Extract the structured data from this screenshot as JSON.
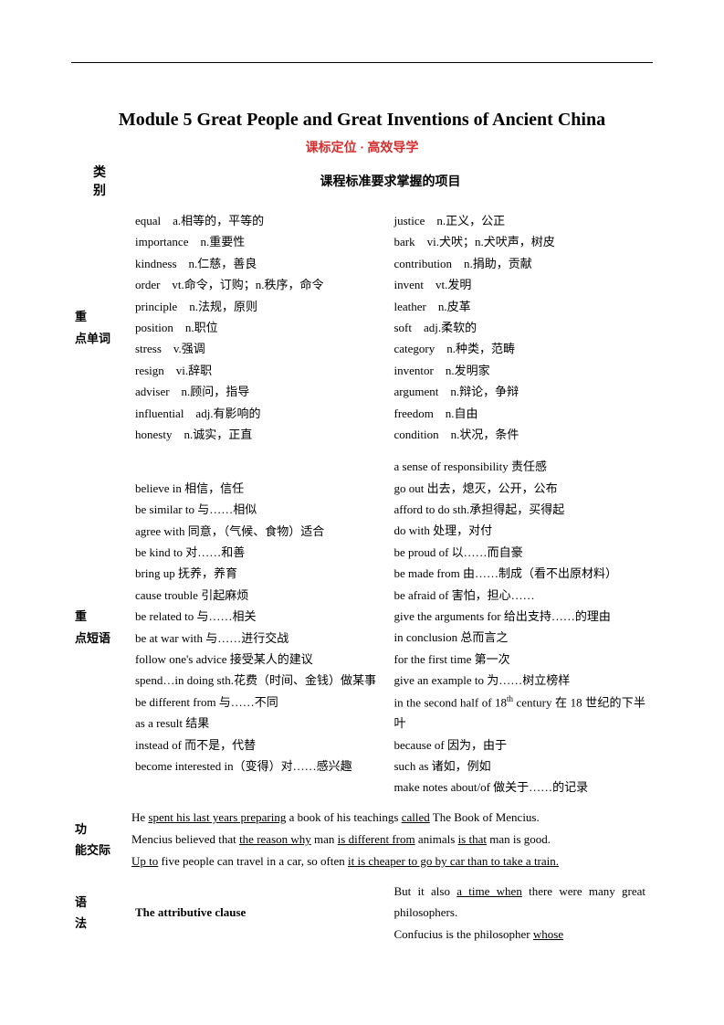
{
  "title": "Module 5 Great People and Great Inventions of Ancient China",
  "subtitle": "课标定位 · 高效导学",
  "header_left": "类\n别",
  "header_right": "课程标准要求掌握的项目",
  "rows": {
    "vocab": {
      "label": "重\n点单词",
      "left": "equal　a.相等的，平等的\nimportance　n.重要性\nkindness　n.仁慈，善良\norder　vt.命令，订购；n.秩序，命令\nprinciple　n.法规，原则\nposition　n.职位\nstress　v.强调\nresign　vi.辞职\nadviser　n.顾问，指导\ninfluential　adj.有影响的\nhonesty　n.诚实，正直",
      "right": "justice　n.正义，公正\nbark　vi.犬吠；n.犬吠声，树皮\ncontribution　n.捐助，贡献\ninvent　vt.发明\nleather　n.皮革\nsoft　adj.柔软的\ncategory　n.种类，范畴\ninventor　n.发明家\nargument　n.辩论，争辩\nfreedom　n.自由\ncondition　n.状况，条件"
    },
    "phrase": {
      "label": "重\n点短语",
      "left": "believe in 相信，信任\nbe similar to 与……相似\nagree with 同意，（气候、食物）适合\nbe kind to 对……和善\nbring up 抚养，养育\ncause trouble 引起麻烦\nbe related to 与……相关\nbe at war with 与……进行交战\nfollow one's advice 接受某人的建议\nspend…in doing sth.花费（时间、金钱）做某事\nbe different from 与……不同\nas a result 结果\ninstead of 而不是，代替\nbecome interested in（变得）对……感兴趣",
      "right": "a sense of responsibility 责任感\ngo out 出去，熄灭，公开，公布\nafford to do sth.承担得起，买得起\ndo with 处理，对付\nbe proud of 以……而自豪\nbe made from 由……制成（看不出原材料）\nbe afraid of 害怕，担心……\ngive the arguments for 给出支持……的理由\nin conclusion 总而言之\nfor the first time 第一次\ngive an example to 为……树立榜样\nin the second half of 18th century 在 18 世纪的下半叶\nbecause of 因为，由于\nsuch as 诸如，例如\nmake notes about/of 做关于……的记录"
    },
    "func": {
      "label": "功\n能交际",
      "sentences": [
        "He <u>spent his last years preparing</u> a book of his teachings <u>called</u> The Book of Mencius.",
        "Mencius believed that <u>the reason why</u> man <u>is different from</u> animals <u>is that</u> man is good.",
        "<u>Up to</u> five people can travel in a car, so often <u>it is cheaper to go by car than to take a train.</u>"
      ]
    },
    "grammar": {
      "label": "语\n法",
      "heading": "The attributive clause",
      "right": "But it also <u>a time when</u> there were many great philosophers.\nConfucius is the philosopher <u>whose</u>"
    }
  }
}
